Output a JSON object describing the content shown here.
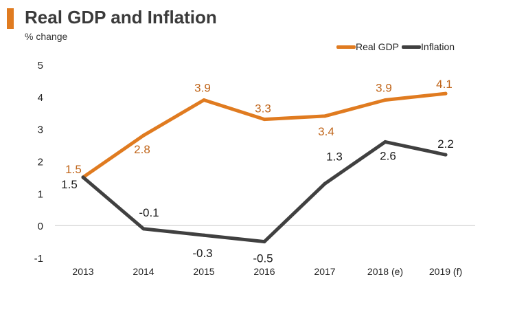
{
  "header": {
    "title": "Real GDP and Inflation",
    "subtitle": "% change"
  },
  "colors": {
    "accent": "#e07b20",
    "gdp": "#e07b20",
    "gdp_label": "#c0651a",
    "inflation": "#404040",
    "axis": "#c8c8c8"
  },
  "legend": {
    "gdp_label": "Real GDP",
    "inflation_label": "Inflation"
  },
  "chart_data": {
    "type": "line",
    "title": "Real GDP and Inflation",
    "ylabel": "% change",
    "xlabel": "",
    "categories": [
      "2013",
      "2014",
      "2015",
      "2016",
      "2017",
      "2018 (e)",
      "2019 (f)"
    ],
    "ylim": [
      -1,
      5
    ],
    "yticks": [
      "5",
      "4",
      "3",
      "2",
      "1",
      "0",
      "-1"
    ],
    "legend_position": "top-right",
    "series": [
      {
        "name": "Real GDP",
        "values": [
          1.5,
          2.8,
          3.9,
          3.3,
          3.4,
          3.9,
          4.1
        ],
        "labels": [
          "1.5",
          "2.8",
          "3.9",
          "3.3",
          "3.4",
          "3.9",
          "4.1"
        ]
      },
      {
        "name": "Inflation",
        "values": [
          1.5,
          -0.1,
          -0.3,
          -0.5,
          1.3,
          2.6,
          2.2
        ],
        "labels": [
          "1.5",
          "-0.1",
          "-0.3",
          "-0.5",
          "1.3",
          "2.6",
          "2.2"
        ]
      }
    ]
  }
}
